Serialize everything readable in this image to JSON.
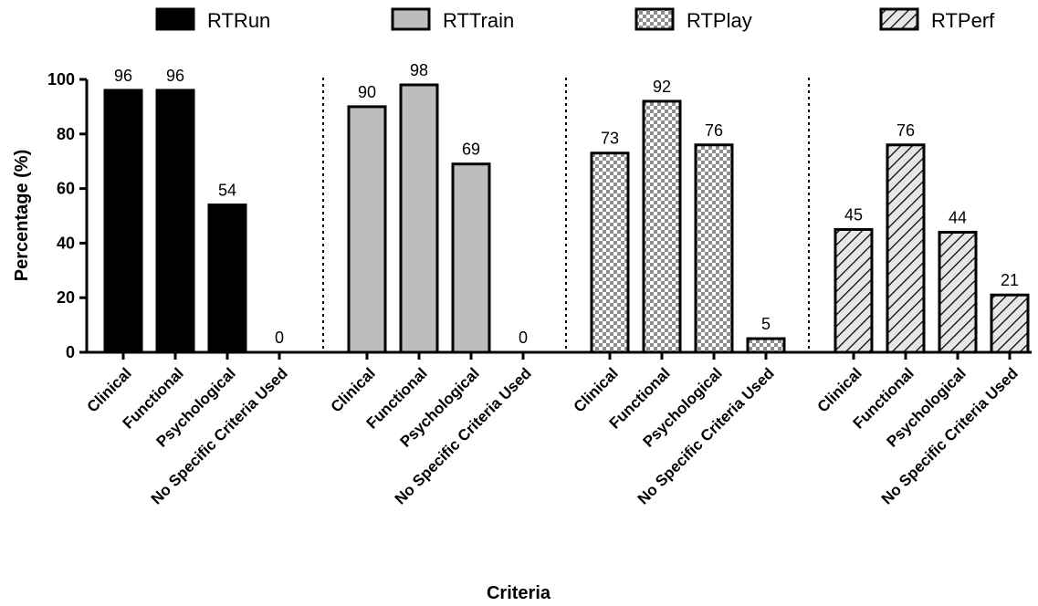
{
  "chart_data": {
    "type": "bar",
    "title": "",
    "xlabel": "Criteria",
    "ylabel": "Percentage (%)",
    "ylim": [
      0,
      100
    ],
    "yticks": [
      0,
      20,
      40,
      60,
      80,
      100
    ],
    "grid": false,
    "legend_position": "top",
    "categories": [
      "Clinical",
      "Functional",
      "Psychological",
      "No Specific Criteria Used"
    ],
    "series": [
      {
        "name": "RTRun",
        "values": [
          96,
          96,
          54,
          0
        ],
        "fill": "#000000",
        "pattern": "solid"
      },
      {
        "name": "RTTrain",
        "values": [
          90,
          98,
          69,
          0
        ],
        "fill": "#bdbdbd",
        "pattern": "solid"
      },
      {
        "name": "RTPlay",
        "values": [
          73,
          92,
          76,
          5
        ],
        "fill": "#cfcfcf",
        "pattern": "checkered"
      },
      {
        "name": "RTPerf",
        "values": [
          45,
          76,
          44,
          21
        ],
        "fill": "#d9d9d9",
        "pattern": "diagonal-hatch"
      }
    ],
    "group_separators": "dotted vertical lines"
  }
}
